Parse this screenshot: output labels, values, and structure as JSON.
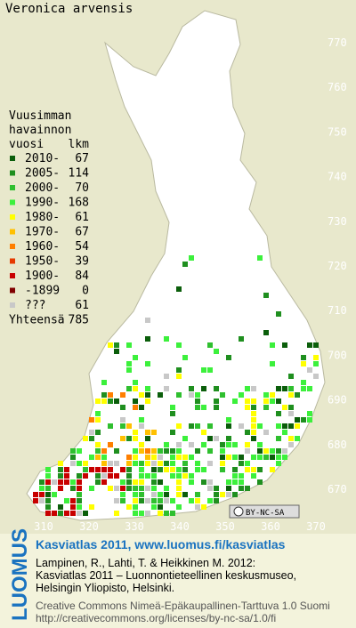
{
  "title": "Veronica arvensis",
  "legend": {
    "heading": [
      "Vuusimman",
      "havainnon",
      "vuosi"
    ],
    "count_heading": "lkm",
    "items": [
      {
        "label": "2010-",
        "count": 67,
        "color": "#0b5e0b"
      },
      {
        "label": "2005-",
        "count": 114,
        "color": "#1f8f1f"
      },
      {
        "label": "2000-",
        "count": 70,
        "color": "#2fbf2f"
      },
      {
        "label": "1990-",
        "count": 168,
        "color": "#3cf03c"
      },
      {
        "label": "1980-",
        "count": 61,
        "color": "#ffff00"
      },
      {
        "label": "1970-",
        "count": 67,
        "color": "#ffc000"
      },
      {
        "label": "1960-",
        "count": 54,
        "color": "#ff7f00"
      },
      {
        "label": "1950-",
        "count": 39,
        "color": "#e63a00"
      },
      {
        "label": "1900-",
        "count": 84,
        "color": "#c80000"
      },
      {
        "label": "-1899",
        "count": 0,
        "color": "#800000"
      },
      {
        "label": "???",
        "count": 61,
        "color": "#c8c8c8"
      }
    ],
    "total_label": "Yhteensä",
    "total": 785
  },
  "grid": {
    "y_labels": [
      770,
      760,
      750,
      740,
      730,
      720,
      710,
      700,
      690,
      680,
      670
    ],
    "x_labels": [
      310,
      320,
      330,
      340,
      350,
      360,
      370
    ]
  },
  "license_badge": "BY-NC-SA",
  "footer": {
    "logo": "LUOMUS",
    "link": "Kasviatlas 2011, www.luomus.fi/kasviatlas",
    "citation": [
      "Lampinen, R., Lahti, T. & Heikkinen M. 2012:",
      "Kasviatlas 2011 – Luonnontieteellinen keskusmuseo,",
      "Helsingin Yliopisto, Helsinki."
    ],
    "license": [
      "Creative Commons Nimeä-Epäkaupallinen-Tarttuva 1.0 Suomi",
      "http://creativecommons.org/licenses/by-nc-sa/1.0/fi"
    ]
  }
}
